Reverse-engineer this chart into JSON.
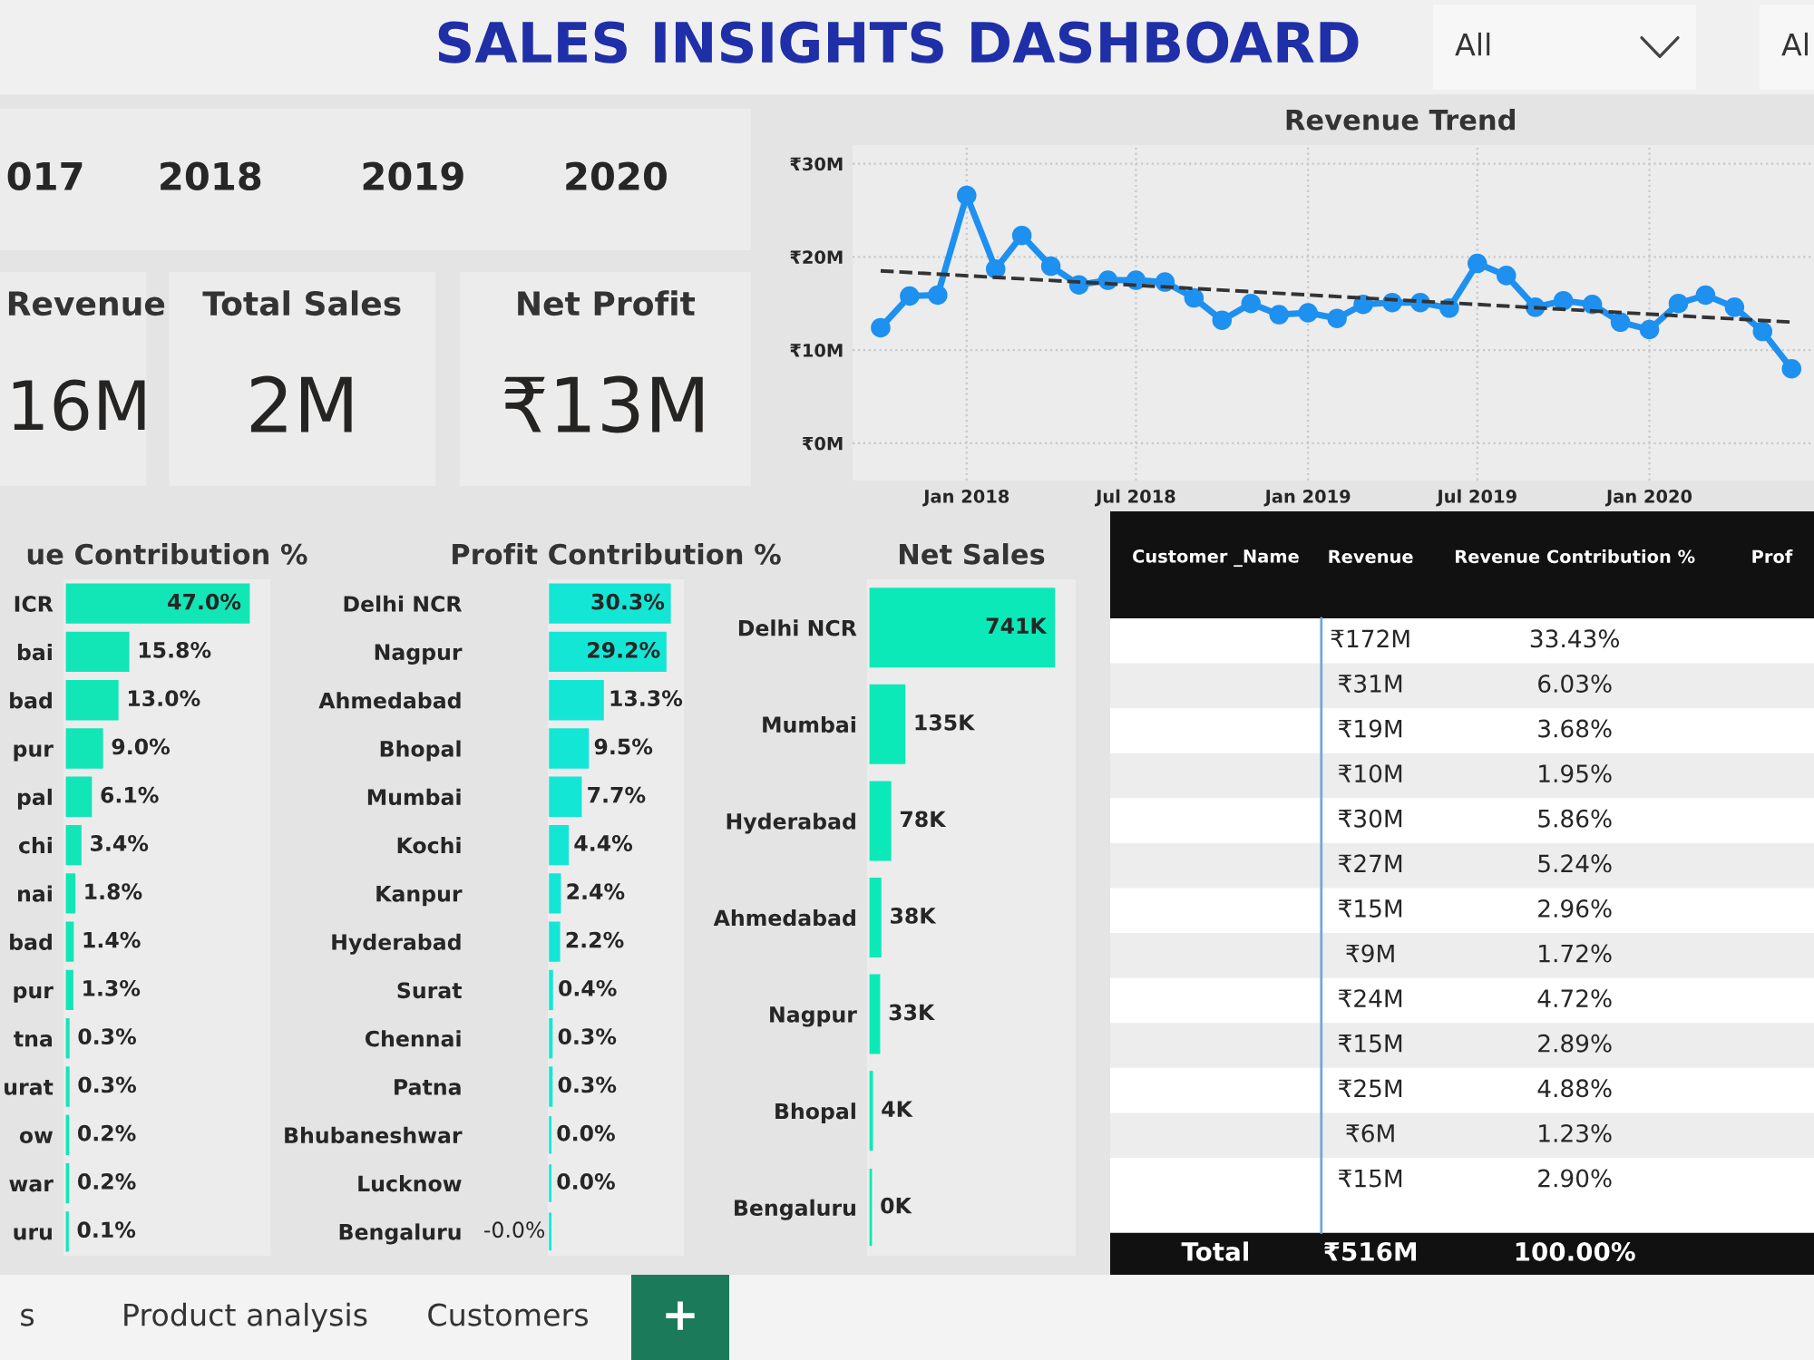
{
  "chart_data": [
    {
      "type": "other",
      "title": "SALES INSIGHTS DASHBOARD",
      "annotations": [
        "All",
        "Al"
      ]
    },
    {
      "type": "other",
      "annotations": [
        "017",
        "2018",
        "2019",
        "2020"
      ]
    },
    {
      "type": "other",
      "annotations": [
        "Revenue",
        "16M",
        "Total Sales",
        "2M",
        "Net Profit",
        "₹13M"
      ]
    },
    {
      "type": "line",
      "title": "Revenue Trend",
      "grid": true,
      "xlim": [
        "2017-09-01",
        "2020-06-25"
      ],
      "ylim": [
        -4,
        32
      ],
      "xticks": [
        {
          "value": "2018-01",
          "label": "Jan 2018"
        },
        {
          "value": "2018-07",
          "label": "Jul 2018"
        },
        {
          "value": "2019-01",
          "label": "Jan 2019"
        },
        {
          "value": "2019-07",
          "label": "Jul 2019"
        },
        {
          "value": "2020-01",
          "label": "Jan 2020"
        }
      ],
      "yticks": [
        {
          "value": 0,
          "label": "₹0M"
        },
        {
          "value": 10,
          "label": "₹10M"
        },
        {
          "value": 20,
          "label": "₹20M"
        },
        {
          "value": 30,
          "label": "₹30M"
        }
      ],
      "series": [
        {
          "color": "#1e90f0",
          "marker": "circle",
          "line_style": "solid",
          "x": [
            "2017-10",
            "2017-11",
            "2017-12",
            "2018-01",
            "2018-02",
            "2018-03",
            "2018-04",
            "2018-05",
            "2018-06",
            "2018-07",
            "2018-08",
            "2018-09",
            "2018-10",
            "2018-11",
            "2018-12",
            "2019-01",
            "2019-02",
            "2019-03",
            "2019-04",
            "2019-05",
            "2019-06",
            "2019-07",
            "2019-08",
            "2019-09",
            "2019-10",
            "2019-11",
            "2019-12",
            "2020-01",
            "2020-02",
            "2020-03",
            "2020-04",
            "2020-05",
            "2020-06"
          ],
          "values": [
            12.4,
            15.8,
            15.9,
            26.6,
            18.7,
            22.3,
            19.0,
            17.0,
            17.5,
            17.5,
            17.3,
            15.6,
            13.2,
            15.0,
            13.8,
            14.0,
            13.4,
            14.9,
            15.1,
            15.1,
            14.5,
            19.3,
            18.0,
            14.6,
            15.3,
            14.9,
            13.0,
            12.2,
            15.0,
            15.9,
            14.6,
            12.0,
            8.0
          ]
        },
        {
          "type": "line",
          "color": "#333333",
          "marker": "none",
          "line_style": "dashed",
          "x": [
            "2017-10",
            "2020-06"
          ],
          "values": [
            18.5,
            13.0
          ]
        }
      ]
    },
    {
      "type": "bar",
      "orientation": "horizontal",
      "tick_labels": "y",
      "title": "ue Contribution %",
      "color": "#12e6b6",
      "categories": [
        "ICR",
        "bai",
        "bad",
        "pur",
        "pal",
        "chi",
        "nai",
        "bad",
        "pur",
        "tna",
        "urat",
        "ow",
        "war",
        "uru"
      ],
      "values": [
        47.0,
        15.8,
        13.0,
        9.0,
        6.1,
        3.4,
        1.8,
        1.4,
        1.3,
        0.3,
        0.3,
        0.2,
        0.2,
        0.1
      ],
      "value_labels": [
        "47.0%",
        "15.8%",
        "13.0%",
        "9.0%",
        "6.1%",
        "3.4%",
        "1.8%",
        "1.4%",
        "1.3%",
        "0.3%",
        "0.3%",
        "0.2%",
        "0.2%",
        "0.1%"
      ]
    },
    {
      "type": "bar",
      "orientation": "horizontal",
      "tick_labels": "y",
      "title": "Profit Contribution %",
      "color": "#14e6d6",
      "categories": [
        "Delhi NCR",
        "Nagpur",
        "Ahmedabad",
        "Bhopal",
        "Mumbai",
        "Kochi",
        "Kanpur",
        "Hyderabad",
        "Surat",
        "Chennai",
        "Patna",
        "Bhubaneshwar",
        "Lucknow",
        "Bengaluru"
      ],
      "values": [
        30.3,
        29.2,
        13.3,
        9.5,
        7.7,
        4.4,
        2.4,
        2.2,
        0.4,
        0.3,
        0.3,
        0.0,
        0.0,
        -0.0
      ],
      "value_labels": [
        "30.3%",
        "29.2%",
        "13.3%",
        "9.5%",
        "7.7%",
        "4.4%",
        "2.4%",
        "2.2%",
        "0.4%",
        "0.3%",
        "0.3%",
        "0.0%",
        "0.0%",
        "-0.0%"
      ]
    },
    {
      "type": "bar",
      "orientation": "horizontal",
      "tick_labels": "y",
      "title": "Net Sales",
      "color": "#0ce9b8",
      "categories": [
        "Delhi NCR",
        "Mumbai",
        "Hyderabad",
        "Ahmedabad",
        "Nagpur",
        "Bhopal",
        "Bengaluru"
      ],
      "values": [
        741,
        135,
        78,
        38,
        33,
        4,
        0
      ],
      "value_labels": [
        "741K",
        "135K",
        "78K",
        "38K",
        "33K",
        "4K",
        "0K"
      ]
    },
    {
      "type": "other",
      "annotations": [
        "Customer _Name",
        "Revenue",
        "Revenue Contribution %",
        "Prof",
        "₹172M",
        "33.43%",
        "₹31M",
        "6.03%",
        "₹19M",
        "3.68%",
        "₹10M",
        "1.95%",
        "₹30M",
        "5.86%",
        "₹27M",
        "5.24%",
        "₹15M",
        "2.96%",
        "₹9M",
        "1.72%",
        "₹24M",
        "4.72%",
        "₹15M",
        "2.89%",
        "₹25M",
        "4.88%",
        "₹6M",
        "1.23%",
        "₹15M",
        "2.90%",
        "Total",
        "₹516M",
        "100.00%"
      ]
    },
    {
      "type": "other",
      "annotations": [
        "s",
        "Product analysis",
        "Customers",
        "+"
      ]
    }
  ]
}
